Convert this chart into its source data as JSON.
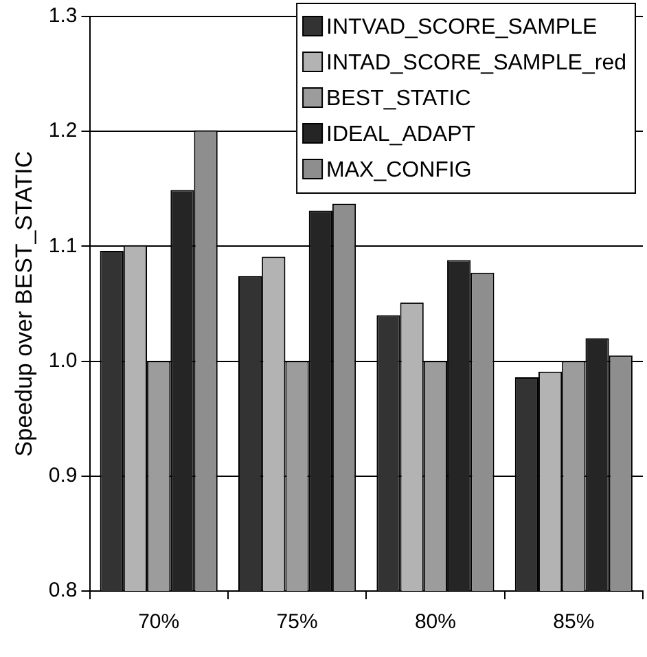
{
  "chart_data": {
    "type": "bar",
    "ylabel": "Speedup over BEST_STATIC",
    "categories": [
      "70%",
      "75%",
      "80%",
      "85%"
    ],
    "series": [
      {
        "name": "INTVAD_SCORE_SAMPLE",
        "color": "#333333",
        "values": [
          1.096,
          1.074,
          1.04,
          0.986
        ]
      },
      {
        "name": "INTAD_SCORE_SAMPLE_red",
        "color": "#b3b3b3",
        "values": [
          1.101,
          1.091,
          1.051,
          0.991
        ]
      },
      {
        "name": "BEST_STATIC",
        "color": "#9c9c9c",
        "values": [
          1.0,
          1.0,
          1.0,
          1.0
        ]
      },
      {
        "name": "IDEAL_ADAPT",
        "color": "#252525",
        "values": [
          1.149,
          1.131,
          1.088,
          1.02
        ]
      },
      {
        "name": "MAX_CONFIG",
        "color": "#8e8e8e",
        "values": [
          1.201,
          1.137,
          1.077,
          1.005
        ]
      }
    ],
    "ylim": [
      0.8,
      1.3
    ],
    "yticks": [
      0.8,
      0.9,
      {
        "value": 1,
        "label": "1.0"
      },
      1.1,
      1.2,
      1.3
    ],
    "grid": "y",
    "legend": "top right"
  }
}
